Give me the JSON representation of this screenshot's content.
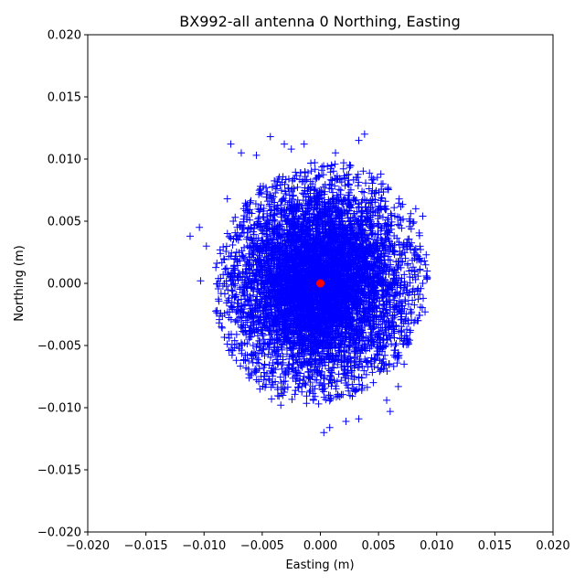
{
  "chart_data": {
    "type": "scatter",
    "title": "BX992-all antenna 0 Northing, Easting",
    "xlabel": "Easting (m)",
    "ylabel": "Northing (m)",
    "xlim": [
      -0.02,
      0.02
    ],
    "ylim": [
      -0.02,
      0.02
    ],
    "xticks": [
      "−0.020",
      "−0.015",
      "−0.010",
      "−0.005",
      "0.000",
      "0.005",
      "0.010",
      "0.015",
      "0.020"
    ],
    "yticks": [
      "−0.020",
      "−0.015",
      "−0.010",
      "−0.005",
      "0.000",
      "0.005",
      "0.010",
      "0.015",
      "0.020"
    ],
    "grid": false,
    "series": [
      {
        "marker": "+",
        "color": "#0000ff",
        "distribution": {
          "center": [
            0.0,
            0.0
          ],
          "std": [
            0.0035,
            0.0038
          ],
          "rotation_deg": -20
        },
        "outliers": [
          [
            -0.0112,
            0.0038
          ],
          [
            -0.0104,
            0.0045
          ],
          [
            -0.0103,
            0.0002
          ],
          [
            -0.0098,
            0.003
          ],
          [
            -0.0085,
            -0.0035
          ],
          [
            -0.0077,
            0.0112
          ],
          [
            -0.0068,
            -0.0048
          ],
          [
            -0.0052,
            -0.0085
          ],
          [
            -0.0043,
            0.0118
          ],
          [
            -0.0031,
            0.0112
          ],
          [
            -0.0014,
            0.0112
          ],
          [
            0.0013,
            0.0105
          ],
          [
            0.0038,
            0.012
          ],
          [
            0.0033,
            0.0115
          ],
          [
            0.0052,
            0.0088
          ],
          [
            0.0058,
            0.0076
          ],
          [
            0.0082,
            0.006
          ],
          [
            0.0088,
            0.0054
          ],
          [
            0.0091,
            0.0023
          ],
          [
            0.009,
            -0.0023
          ],
          [
            0.0088,
            0.0
          ],
          [
            0.0084,
            -0.003
          ],
          [
            0.0075,
            -0.0045
          ],
          [
            0.0072,
            -0.0065
          ],
          [
            0.0067,
            -0.0083
          ],
          [
            0.0057,
            -0.0094
          ],
          [
            0.006,
            -0.0103
          ],
          [
            0.0033,
            -0.0109
          ],
          [
            0.0022,
            -0.0111
          ],
          [
            0.0008,
            -0.0116
          ],
          [
            0.0003,
            -0.012
          ],
          [
            -0.0006,
            -0.0094
          ],
          [
            -0.0016,
            -0.0083
          ],
          [
            -0.0034,
            -0.0098
          ],
          [
            -0.0042,
            -0.0093
          ],
          [
            -0.008,
            0.0068
          ],
          [
            -0.0068,
            0.0105
          ],
          [
            -0.0055,
            0.0103
          ],
          [
            -0.0025,
            0.0108
          ],
          [
            0.002,
            0.0097
          ]
        ],
        "sample_count": 6500,
        "seed": 7
      },
      {
        "marker": "o",
        "color": "#ff0000",
        "points": [
          [
            0.0,
            0.0
          ]
        ]
      }
    ]
  }
}
